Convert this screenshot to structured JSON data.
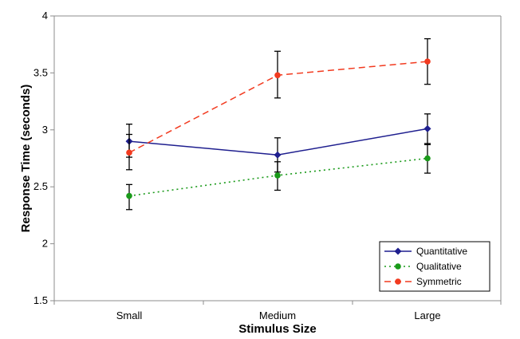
{
  "chart_data": {
    "type": "line",
    "title": "",
    "xlabel": "Stimulus Size",
    "ylabel": "Response Time (seconds)",
    "categories": [
      "Small",
      "Medium",
      "Large"
    ],
    "ylim": [
      1.5,
      4
    ],
    "yticks": [
      1.5,
      2,
      2.5,
      3,
      3.5,
      4
    ],
    "ytick_labels": [
      "1.5",
      "2",
      "2.5",
      "3",
      "3.5",
      "4"
    ],
    "grid": false,
    "legend_position": "bottom-right",
    "series": [
      {
        "name": "Quantitative",
        "color": "#1f1f8f",
        "line_style": "solid",
        "marker": "diamond",
        "values": [
          2.9,
          2.78,
          3.01
        ],
        "error_low": [
          2.76,
          2.63,
          2.87
        ],
        "error_high": [
          3.05,
          2.93,
          3.14
        ]
      },
      {
        "name": "Qualitative",
        "color": "#1a9a1a",
        "line_style": "dotted",
        "marker": "circle",
        "values": [
          2.42,
          2.6,
          2.75
        ],
        "error_low": [
          2.3,
          2.47,
          2.62
        ],
        "error_high": [
          2.52,
          2.72,
          2.88
        ]
      },
      {
        "name": "Symmetric",
        "color": "#f23a1f",
        "line_style": "dashed",
        "marker": "circle",
        "values": [
          2.8,
          3.48,
          3.6
        ],
        "error_low": [
          2.65,
          3.28,
          3.4
        ],
        "error_high": [
          2.96,
          3.69,
          3.8
        ]
      }
    ]
  }
}
